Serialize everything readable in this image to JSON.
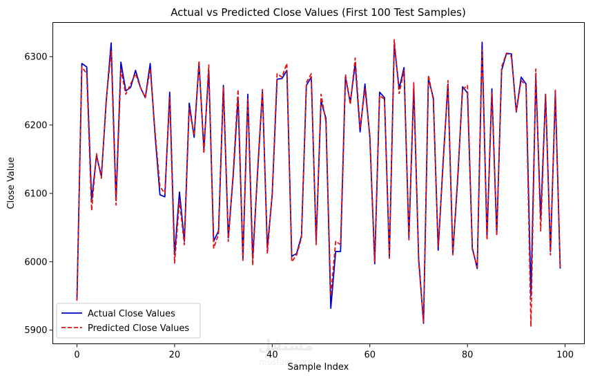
{
  "chart_data": {
    "type": "line",
    "title": "Actual vs Predicted Close Values (First 100 Test Samples)",
    "xlabel": "Sample Index",
    "ylabel": "Close Value",
    "xlim": [
      -4.95,
      103.95
    ],
    "ylim": [
      5880,
      6350
    ],
    "xticks": [
      0,
      20,
      40,
      60,
      80,
      100
    ],
    "yticks": [
      5900,
      6000,
      6100,
      6200,
      6300
    ],
    "grid": false,
    "legend_position": "lower-left",
    "series": [
      {
        "name": "Actual Close Values",
        "color": "#0000cc",
        "style": "solid",
        "values": [
          5945,
          6290,
          6285,
          6090,
          6155,
          6125,
          6235,
          6320,
          6090,
          6292,
          6250,
          6255,
          6280,
          6255,
          6240,
          6290,
          6185,
          6098,
          6095,
          6248,
          6010,
          6102,
          6030,
          6232,
          6182,
          6290,
          6165,
          6280,
          6030,
          6045,
          6258,
          6035,
          6125,
          6240,
          6005,
          6245,
          6005,
          6130,
          6250,
          6020,
          6098,
          6267,
          6268,
          6280,
          6008,
          6012,
          6038,
          6258,
          6270,
          6030,
          6235,
          6210,
          5932,
          6015,
          6015,
          6270,
          6233,
          6290,
          6190,
          6260,
          6182,
          5997,
          6248,
          6240,
          6007,
          6318,
          6253,
          6284,
          6035,
          6255,
          6005,
          5910,
          6268,
          6240,
          6017,
          6145,
          6260,
          6012,
          6120,
          6256,
          6247,
          6020,
          5990,
          6321,
          6035,
          6253,
          6040,
          6280,
          6305,
          6304,
          6219,
          6270,
          6260,
          5950,
          6270,
          6063,
          6245,
          6015,
          6245,
          5990
        ]
      },
      {
        "name": "Predicted Close Values",
        "color": "#dd1111",
        "style": "dashed",
        "values": [
          5943,
          6285,
          6275,
          6075,
          6158,
          6122,
          6238,
          6308,
          6083,
          6281,
          6245,
          6260,
          6275,
          6255,
          6240,
          6282,
          6190,
          6110,
          6100,
          6240,
          5998,
          6090,
          6025,
          6225,
          6185,
          6294,
          6158,
          6288,
          6020,
          6040,
          6255,
          6030,
          6130,
          6252,
          6002,
          6238,
          5995,
          6135,
          6252,
          6012,
          6100,
          6275,
          6270,
          6290,
          6000,
          6010,
          6035,
          6262,
          6275,
          6025,
          6245,
          6205,
          5950,
          6030,
          6025,
          6274,
          6230,
          6298,
          6195,
          6253,
          6185,
          6000,
          6243,
          6238,
          6005,
          6325,
          6246,
          6280,
          6032,
          6262,
          6000,
          5912,
          6273,
          6237,
          6022,
          6140,
          6265,
          6010,
          6125,
          6252,
          6258,
          6018,
          5992,
          6310,
          6032,
          6248,
          6038,
          6285,
          6305,
          6300,
          6220,
          6265,
          6258,
          5905,
          6282,
          6045,
          6245,
          6010,
          6252,
          5992
        ]
      }
    ]
  },
  "watermark": {
    "text": "مستقل",
    "subtext": "mostaql.com"
  }
}
